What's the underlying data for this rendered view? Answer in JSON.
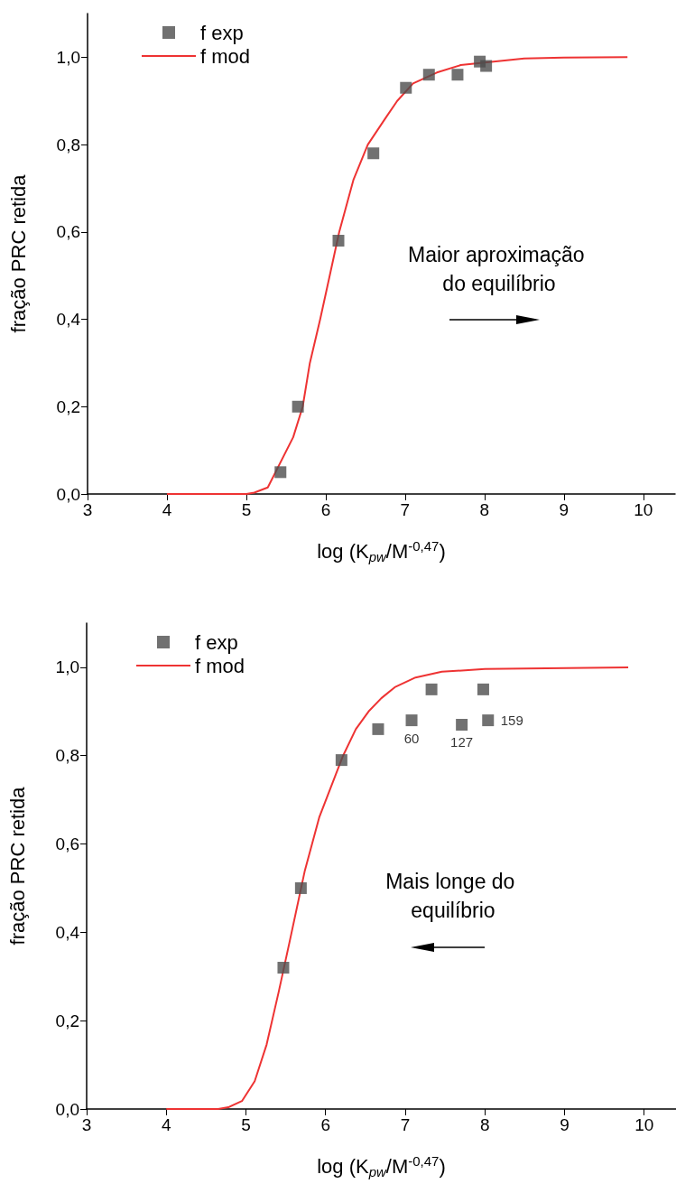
{
  "chart_data": [
    {
      "type": "scatter",
      "xlabel": "log (K$_{pw}$/M$^{-0,47}$)",
      "ylabel": "fração PRC retida",
      "xlim": [
        3,
        10.4
      ],
      "xticks": [
        3,
        4,
        5,
        6,
        7,
        8,
        9,
        10
      ],
      "ylim": [
        0,
        1.1
      ],
      "yticks": [
        {
          "value": 0,
          "label": "0,0"
        },
        {
          "value": 0.2,
          "label": "0,2"
        },
        {
          "value": 0.4,
          "label": "0,4"
        },
        {
          "value": 0.6,
          "label": "0,6"
        },
        {
          "value": 0.8,
          "label": "0,8"
        },
        {
          "value": 1.0,
          "label": "1,0"
        }
      ],
      "grid": false,
      "legend": "top left",
      "annotations": [
        "Maior aproximação do equilíbrio"
      ],
      "series": [
        {
          "name": "f exp",
          "type": "scatter",
          "color": "#4d4d4d",
          "marker": "square",
          "x": [
            5.43,
            5.65,
            6.16,
            6.6,
            7.01,
            7.3,
            7.66,
            7.94,
            8.02
          ],
          "values": [
            0.05,
            0.2,
            0.58,
            0.78,
            0.93,
            0.96,
            0.96,
            0.99,
            0.98
          ]
        },
        {
          "name": "f mod",
          "type": "line",
          "color": "#ee3333",
          "marker": "none",
          "line_style": "solid",
          "x": [
            4,
            5,
            5.1,
            5.27,
            5.59,
            5.71,
            5.8,
            5.93,
            6.05,
            6.17,
            6.35,
            6.53,
            6.75,
            6.9,
            7.1,
            7.4,
            7.7,
            8.5,
            9,
            9.8
          ],
          "values": [
            0,
            0,
            0.003,
            0.015,
            0.13,
            0.2,
            0.3,
            0.4,
            0.5,
            0.6,
            0.72,
            0.8,
            0.86,
            0.9,
            0.94,
            0.965,
            0.982,
            0.997,
            0.999,
            1.0
          ]
        }
      ]
    },
    {
      "type": "scatter",
      "xlabel": "log (K$_{pw}$/M$^{-0,47}$)",
      "ylabel": "fração PRC retida",
      "xlim": [
        3,
        10.4
      ],
      "xticks": [
        3,
        4,
        5,
        6,
        7,
        8,
        9,
        10
      ],
      "ylim": [
        0,
        1.1
      ],
      "yticks": [
        {
          "value": 0,
          "label": "0,0"
        },
        {
          "value": 0.2,
          "label": "0,2"
        },
        {
          "value": 0.4,
          "label": "0,4"
        },
        {
          "value": 0.6,
          "label": "0,6"
        },
        {
          "value": 0.8,
          "label": "0,8"
        },
        {
          "value": 1.0,
          "label": "1,0"
        }
      ],
      "grid": false,
      "legend": "top left",
      "annotations": [
        {
          "text": "60",
          "x": 7.08,
          "y": 0.88
        },
        {
          "text": "127",
          "x": 7.71,
          "y": 0.87
        },
        {
          "text": "159",
          "x": 8.04,
          "y": 0.88
        },
        "Mais longe do equilíbrio"
      ],
      "series": [
        {
          "name": "f exp",
          "type": "scatter",
          "color": "#4d4d4d",
          "marker": "square",
          "x": [
            5.47,
            5.69,
            6.2,
            6.66,
            7.08,
            7.33,
            7.71,
            7.98,
            8.04
          ],
          "values": [
            0.32,
            0.5,
            0.79,
            0.86,
            0.88,
            0.95,
            0.87,
            0.95,
            0.88
          ]
        },
        {
          "name": "f mod",
          "type": "line",
          "color": "#ee3333",
          "marker": "none",
          "line_style": "solid",
          "x": [
            4,
            4.65,
            4.78,
            4.95,
            5.11,
            5.26,
            5.41,
            5.55,
            5.74,
            5.92,
            6.07,
            6.22,
            6.38,
            6.54,
            6.7,
            6.87,
            7.13,
            7.46,
            8,
            9.8
          ],
          "values": [
            0,
            0,
            0.004,
            0.018,
            0.063,
            0.146,
            0.264,
            0.38,
            0.54,
            0.66,
            0.73,
            0.8,
            0.86,
            0.9,
            0.93,
            0.955,
            0.977,
            0.99,
            0.996,
            1.0
          ]
        }
      ]
    }
  ]
}
